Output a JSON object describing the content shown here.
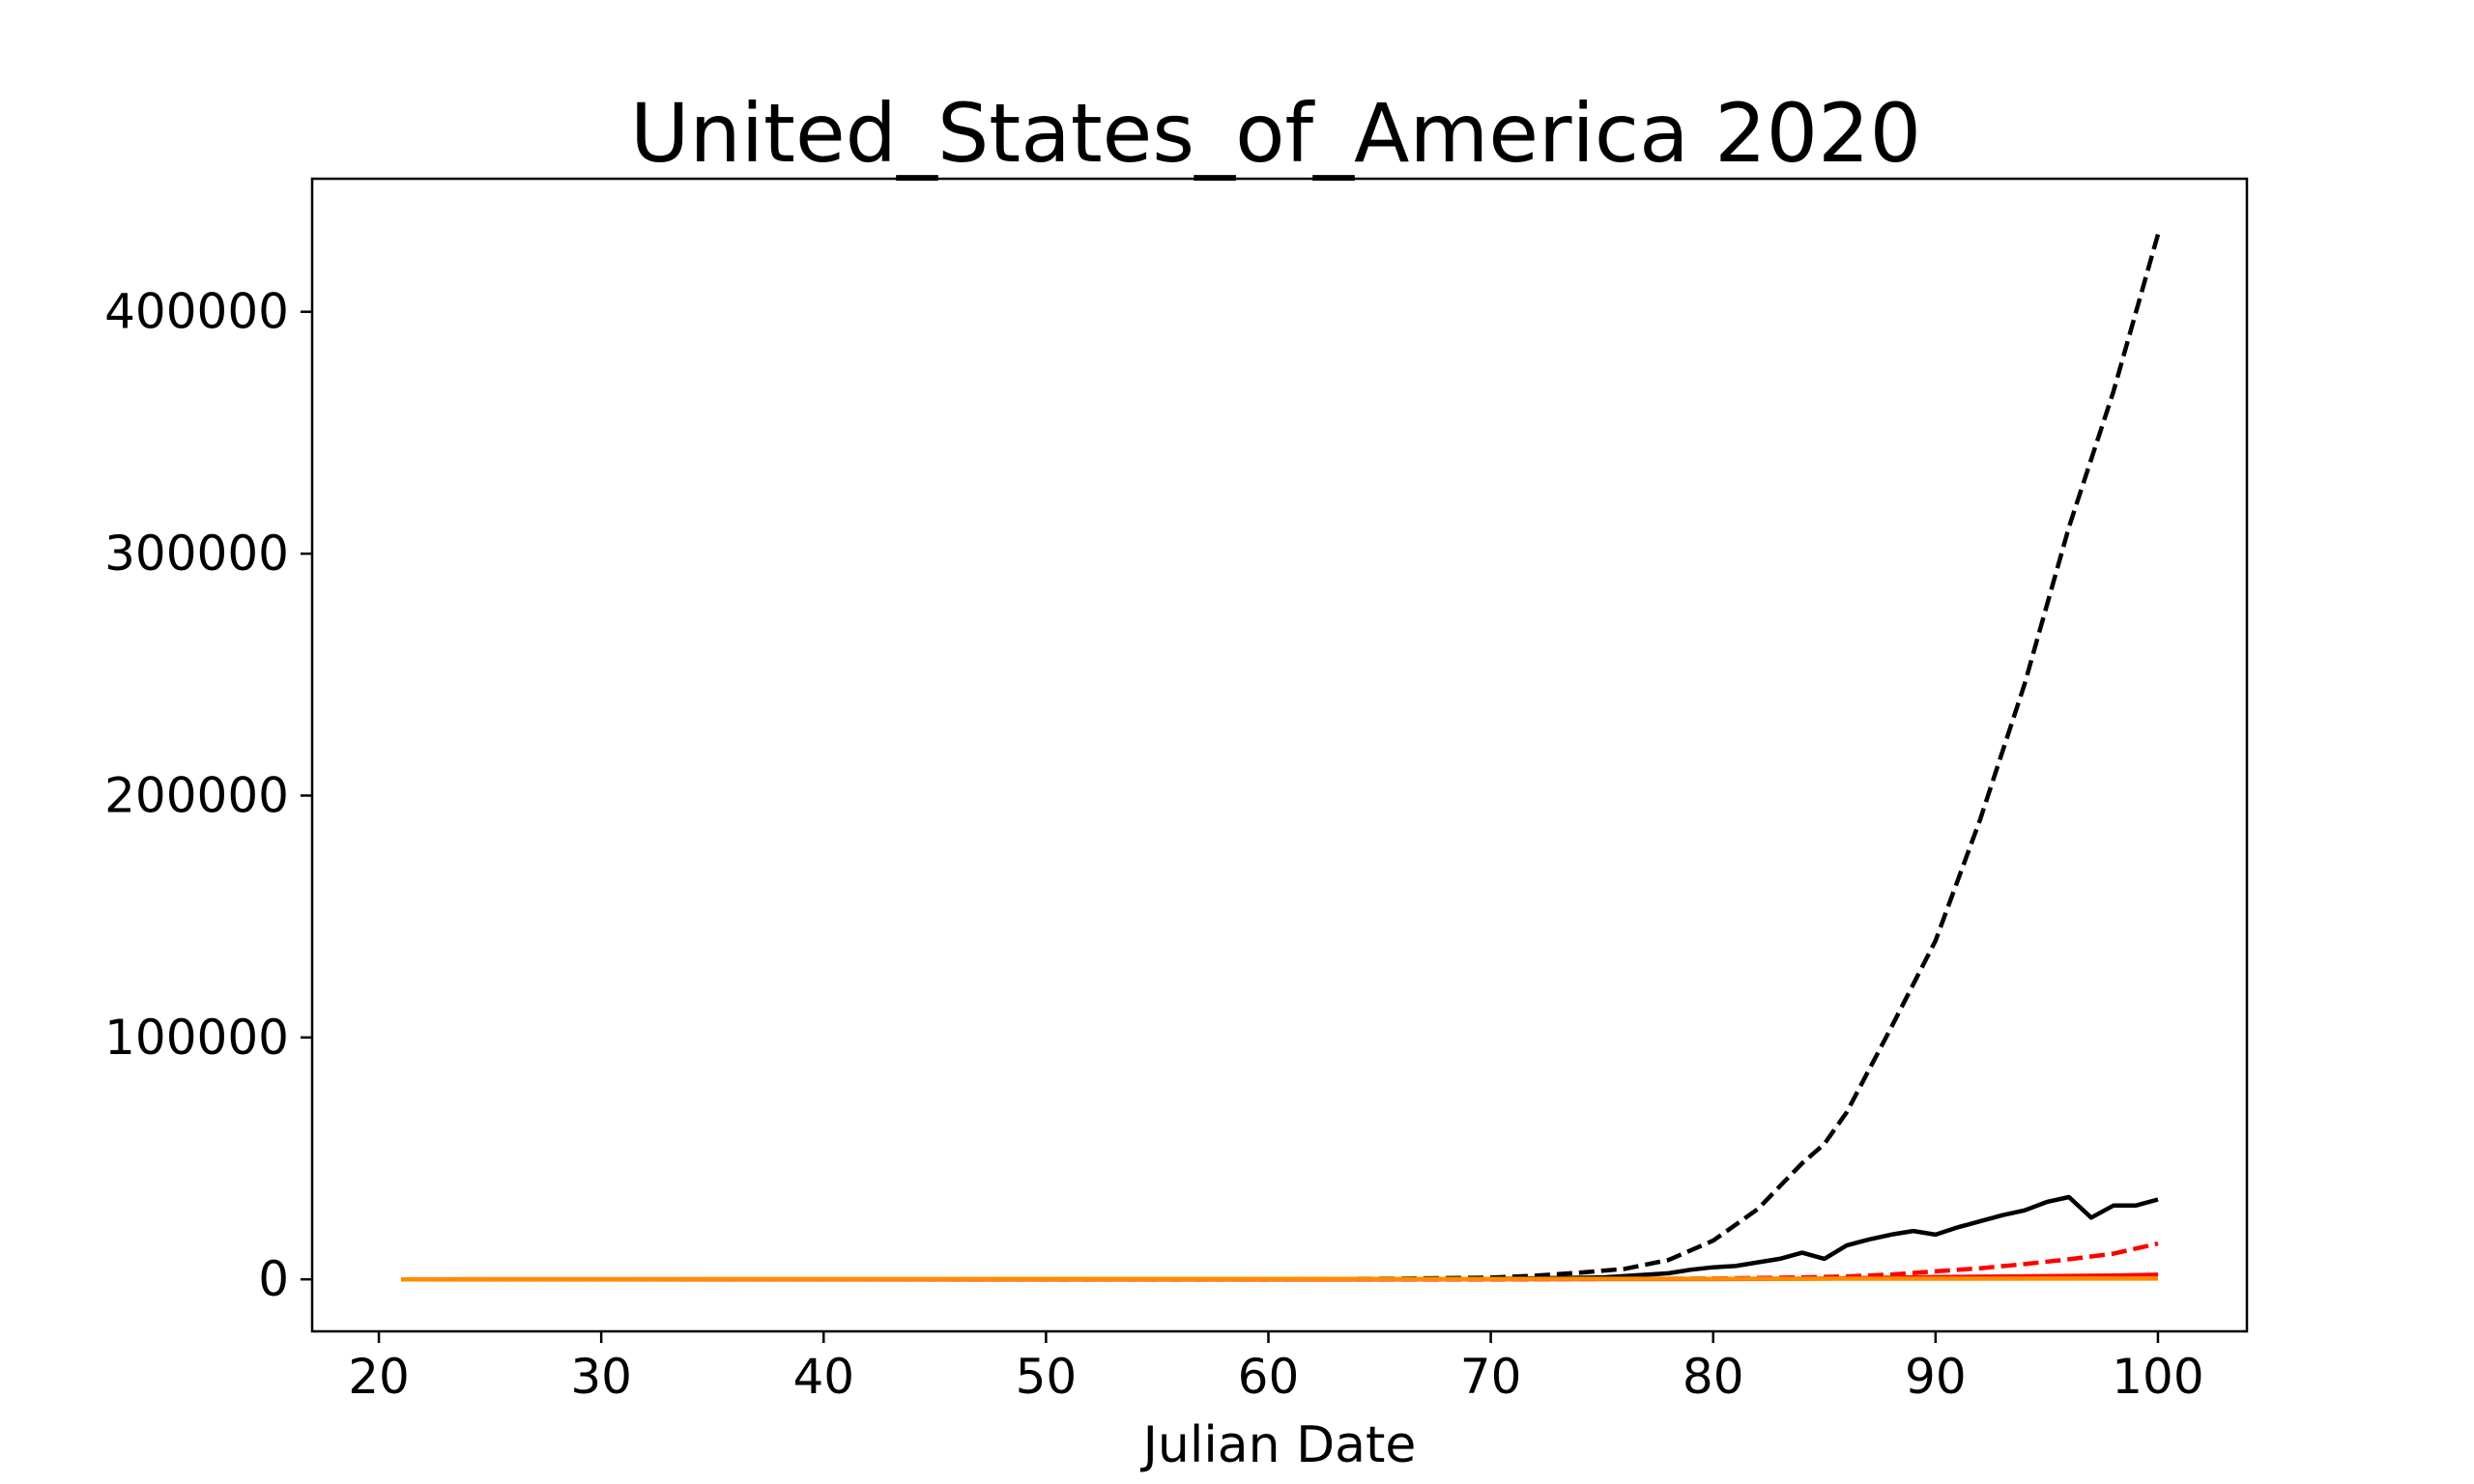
{
  "chart_data": {
    "type": "line",
    "title": "United_States_of_America 2020",
    "xlabel": "Julian Date",
    "ylabel": "",
    "xlim": [
      17,
      104
    ],
    "ylim": [
      -21500,
      455000
    ],
    "xticks": [
      20,
      30,
      40,
      50,
      60,
      70,
      80,
      90,
      100
    ],
    "yticks": [
      0,
      100000,
      200000,
      300000,
      400000
    ],
    "xtick_labels": [
      "20",
      "30",
      "40",
      "50",
      "60",
      "70",
      "80",
      "90",
      "100"
    ],
    "ytick_labels": [
      "0",
      "100000",
      "200000",
      "300000",
      "400000"
    ],
    "grid": false,
    "legend": "none",
    "series": [
      {
        "color": "#000000",
        "dash": true,
        "x": [
          21,
          60,
          66,
          70,
          72,
          74,
          76,
          78,
          80,
          82,
          84,
          85,
          86,
          88,
          90,
          92,
          94,
          96,
          98,
          100
        ],
        "y": [
          0,
          0,
          300,
          700,
          1500,
          2800,
          4300,
          8000,
          16000,
          29000,
          48000,
          56000,
          69000,
          104000,
          140000,
          190000,
          246000,
          311000,
          367000,
          432000
        ]
      },
      {
        "color": "#000000",
        "dash": false,
        "x": [
          21,
          60,
          70,
          75,
          78,
          79,
          80,
          81,
          82,
          83,
          84,
          85,
          86,
          87,
          88,
          89,
          90,
          91,
          92,
          93,
          94,
          95,
          96,
          97,
          98,
          99,
          100
        ],
        "y": [
          0,
          0,
          200,
          800,
          2500,
          4000,
          5000,
          5500,
          7000,
          8500,
          11000,
          8500,
          14000,
          16500,
          18500,
          20000,
          18500,
          21500,
          24000,
          26500,
          28500,
          32000,
          34000,
          25500,
          30500,
          30500,
          33000
        ]
      },
      {
        "color": "#ff0000",
        "dash": true,
        "x": [
          21,
          70,
          80,
          84,
          86,
          88,
          90,
          92,
          94,
          96,
          98,
          100
        ],
        "y": [
          0,
          0,
          300,
          800,
          1200,
          2000,
          3300,
          4600,
          6300,
          8300,
          10600,
          14800
        ]
      },
      {
        "color": "#ff0000",
        "dash": false,
        "x": [
          21,
          80,
          85,
          90,
          95,
          98,
          100
        ],
        "y": [
          0,
          100,
          300,
          900,
          1300,
          1600,
          1900
        ]
      },
      {
        "color": "#ff8c00",
        "dash": false,
        "x": [
          21,
          100
        ],
        "y": [
          0,
          300
        ]
      }
    ]
  }
}
